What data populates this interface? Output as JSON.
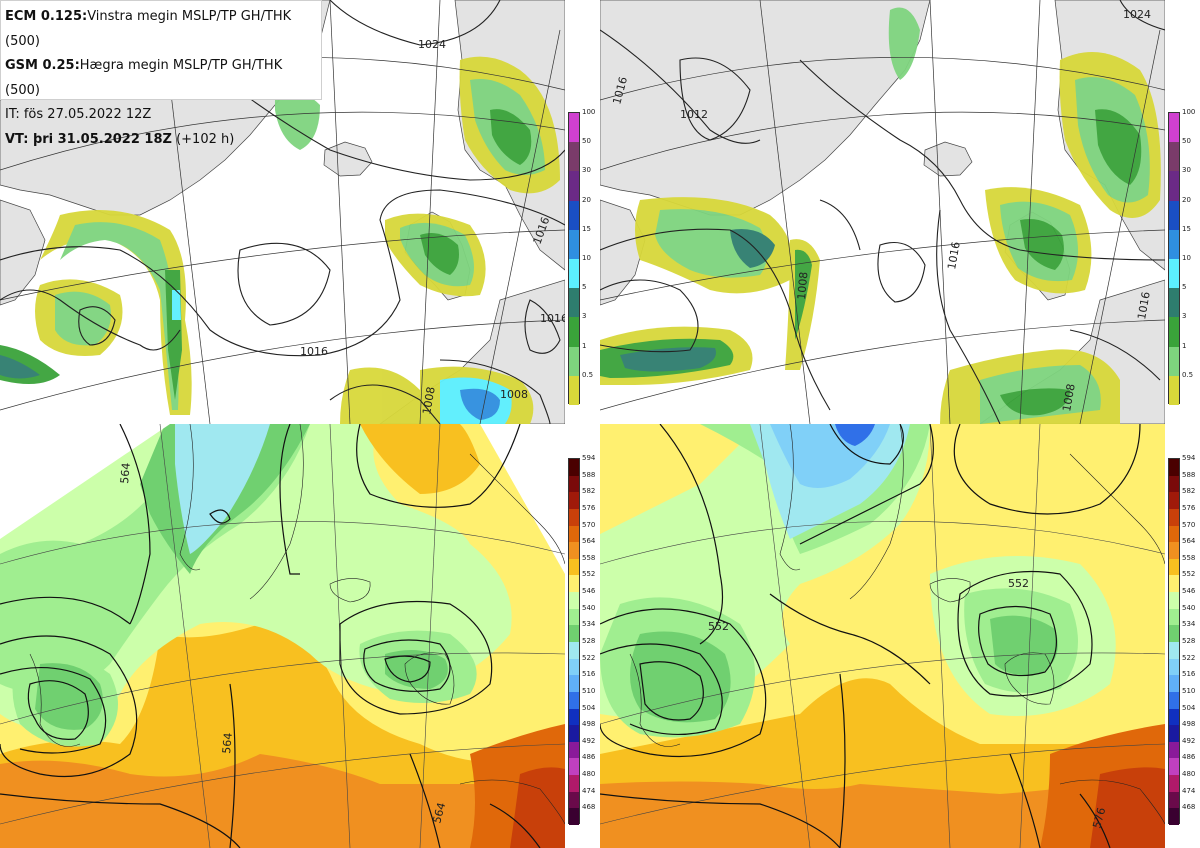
{
  "info": {
    "line1_key": "ECM 0.125:",
    "line1_val": "Vinstra megin MSLP/TP GH/THK (500)",
    "line2_key": "GSM 0.25:",
    "line2_val": "Hægra megin MSLP/TP GH/THK (500)",
    "line3": "IT: fös 27.05.2022 12Z",
    "line4_key": "VT: þri 31.05.2022 18Z",
    "line4_val": "(+102 h)"
  },
  "precip_legend": {
    "ticks": [
      "100",
      "50",
      "30",
      "20",
      "15",
      "10",
      "5",
      "3",
      "1",
      "0.5"
    ],
    "colors": [
      "#d040d0",
      "#7a3b6a",
      "#6b2a86",
      "#1a4fc4",
      "#2f8fe0",
      "#5cf0ff",
      "#2e7d6e",
      "#3aa33a",
      "#7ed47e",
      "#d8d83a"
    ]
  },
  "thickness_legend": {
    "ticks": [
      "594",
      "588",
      "582",
      "576",
      "570",
      "564",
      "558",
      "552",
      "546",
      "540",
      "534",
      "528",
      "522",
      "516",
      "510",
      "504",
      "498",
      "492",
      "486",
      "480",
      "474",
      "468"
    ],
    "colors": [
      "#4a0000",
      "#7a0a0a",
      "#a01a0a",
      "#c8400a",
      "#e0680a",
      "#f09020",
      "#f8c020",
      "#fff070",
      "#ccffaa",
      "#a0ee90",
      "#70d070",
      "#a0e8f0",
      "#80d0f8",
      "#60b0f8",
      "#3070e8",
      "#1030c0",
      "#1a1aa0",
      "#8a1a9a",
      "#c040c0",
      "#b01a6a",
      "#6a0a4a",
      "#3a0030"
    ]
  },
  "contour_labels": {
    "tl": [
      "1024",
      "1016",
      "1016",
      "1016",
      "1008",
      "1008"
    ],
    "tr": [
      "1024",
      "1012",
      "1016",
      "1008",
      "1016",
      "1008",
      "1016"
    ],
    "bl": [
      "564",
      "564",
      "564"
    ],
    "br": [
      "552",
      "552",
      "576"
    ]
  }
}
